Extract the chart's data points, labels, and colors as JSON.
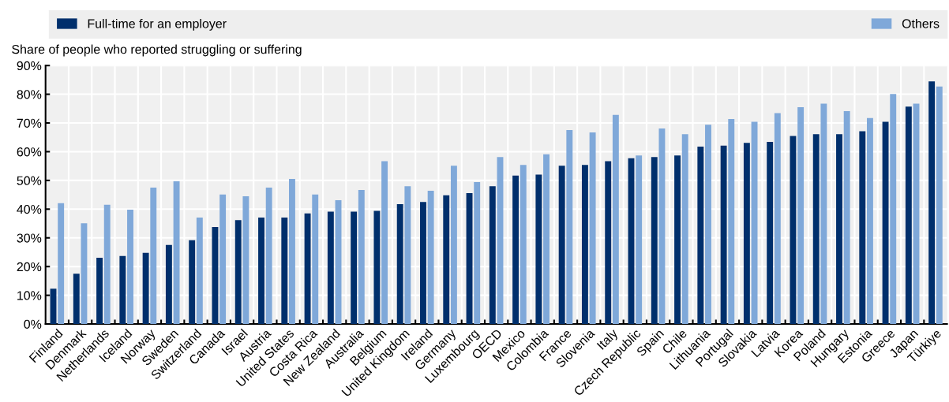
{
  "chart_data": {
    "type": "bar",
    "ylabel": "Share of people who reported struggling or suffering",
    "categories": [
      "Finland",
      "Denmark",
      "Netherlands",
      "Iceland",
      "Norway",
      "Sweden",
      "Switzerland",
      "Canada",
      "Israel",
      "Austria",
      "United States",
      "Costa Rica",
      "New Zealand",
      "Australia",
      "Belgium",
      "United Kingdom",
      "Ireland",
      "Germany",
      "Luxembourg",
      "OECD",
      "Mexico",
      "Colombia",
      "France",
      "Slovenia",
      "Italy",
      "Czech Republic",
      "Spain",
      "Chile",
      "Lithuania",
      "Portugal",
      "Slovakia",
      "Latvia",
      "Korea",
      "Poland",
      "Hungary",
      "Estonia",
      "Greece",
      "Japan",
      "Türkiye"
    ],
    "series": [
      {
        "name": "Full-time for an employer",
        "color": "#002f6c",
        "values": [
          12.3,
          17.5,
          23.1,
          23.7,
          24.8,
          27.5,
          29.2,
          33.8,
          36.2,
          37.1,
          37.1,
          38.5,
          39.1,
          39.1,
          39.4,
          41.7,
          42.5,
          44.8,
          45.6,
          48.0,
          51.7,
          52.0,
          55.1,
          55.4,
          56.7,
          57.7,
          58.1,
          58.7,
          61.8,
          62.1,
          63.1,
          63.4,
          65.5,
          66.1,
          66.1,
          67.1,
          70.4,
          75.7,
          84.5
        ]
      },
      {
        "name": "Others",
        "color": "#7fa8d9",
        "values": [
          42.1,
          35.1,
          41.5,
          39.8,
          47.5,
          49.7,
          37.1,
          45.1,
          44.5,
          47.5,
          50.5,
          45.1,
          43.1,
          46.7,
          56.7,
          48.0,
          46.4,
          55.1,
          49.4,
          58.1,
          55.4,
          59.1,
          67.5,
          66.7,
          72.8,
          58.7,
          68.1,
          66.1,
          69.4,
          71.4,
          70.4,
          73.4,
          75.5,
          76.7,
          74.1,
          71.7,
          80.1,
          76.7,
          82.7
        ]
      }
    ],
    "ylim": [
      0,
      90
    ],
    "yticks": [
      {
        "value": 0,
        "label": "0%"
      },
      {
        "value": 10,
        "label": "10%"
      },
      {
        "value": 20,
        "label": "20%"
      },
      {
        "value": 30,
        "label": "30%"
      },
      {
        "value": 40,
        "label": "40%"
      },
      {
        "value": 50,
        "label": "50%"
      },
      {
        "value": 60,
        "label": "60%"
      },
      {
        "value": 70,
        "label": "70%"
      },
      {
        "value": 80,
        "label": "80%"
      },
      {
        "value": 90,
        "label": "90%"
      }
    ],
    "grid": true,
    "legend": "top"
  }
}
